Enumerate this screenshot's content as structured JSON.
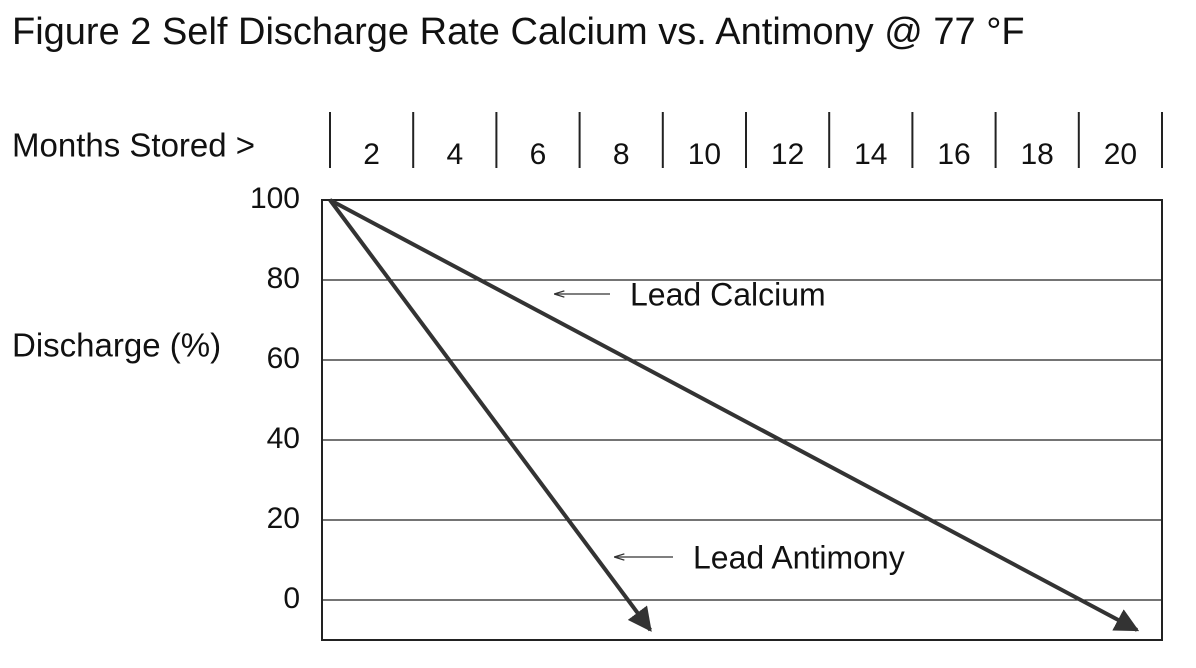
{
  "chart_data": {
    "type": "line",
    "title": "Figure 2 Self Discharge Rate Calcium vs. Antimony @ 77 °F",
    "x_label": "Months Stored >",
    "y_label": "Discharge (%)",
    "xlim": [
      0,
      20
    ],
    "xticks": [
      2,
      4,
      6,
      8,
      10,
      12,
      14,
      16,
      18,
      20
    ],
    "ylim": [
      -10,
      100
    ],
    "yticks": [
      0,
      20,
      40,
      60,
      80,
      100
    ],
    "grid": true,
    "series": [
      {
        "name": "Lead Calcium",
        "color": "#333333",
        "x": [
          0,
          19.4
        ],
        "values": [
          100,
          -7.5
        ]
      },
      {
        "name": "Lead Antimony",
        "color": "#333333",
        "x": [
          0,
          7.7
        ],
        "values": [
          100,
          -7.5
        ]
      }
    ]
  }
}
